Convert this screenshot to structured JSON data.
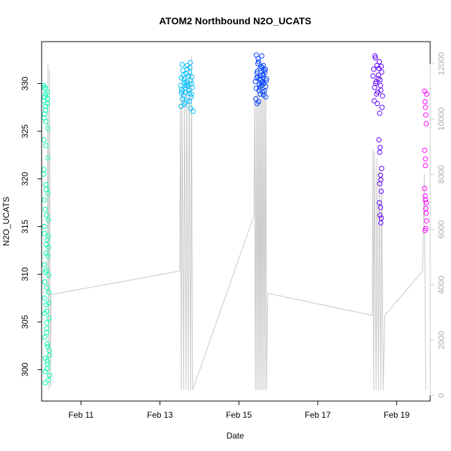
{
  "chart_data": {
    "type": "scatter",
    "title": "ATOM2 Northbound N2O_UCATS",
    "xlabel": "Date",
    "ylabel": "N2O_UCATS",
    "x_unit": "days of Feb 2017",
    "xlim": [
      10.0,
      19.85
    ],
    "ylim": [
      296.7,
      334.4
    ],
    "y2lim": [
      -200,
      12800
    ],
    "x_ticks": [
      {
        "value": 11,
        "label": "Feb 11"
      },
      {
        "value": 13,
        "label": "Feb 13"
      },
      {
        "value": 15,
        "label": "Feb 15"
      },
      {
        "value": 17,
        "label": "Feb 17"
      },
      {
        "value": 19,
        "label": "Feb 19"
      }
    ],
    "y_ticks": [
      300,
      305,
      310,
      315,
      320,
      325,
      330
    ],
    "y2_ticks": [
      0,
      2000,
      4000,
      6000,
      8000,
      10000,
      12000
    ],
    "y2_color": "#c8c8c8",
    "grid": false,
    "legend": "none",
    "series": [
      {
        "color": "#00ffb3",
        "x": [
          10.05,
          10.05,
          10.06,
          10.06,
          10.06,
          10.07,
          10.07,
          10.07,
          10.08,
          10.08,
          10.08,
          10.08,
          10.09,
          10.09,
          10.09,
          10.1,
          10.1,
          10.1,
          10.11,
          10.11,
          10.11,
          10.12,
          10.12,
          10.12,
          10.13,
          10.13,
          10.13,
          10.14,
          10.14,
          10.14,
          10.15,
          10.15,
          10.15,
          10.16,
          10.16,
          10.16,
          10.17,
          10.17,
          10.18,
          10.18,
          10.19,
          10.19,
          10.2,
          10.2,
          10.05,
          10.07,
          10.09,
          10.11,
          10.13,
          10.15,
          10.17,
          10.06,
          10.08,
          10.1,
          10.12,
          10.14,
          10.16,
          10.18,
          10.07,
          10.09,
          10.11,
          10.13,
          10.15,
          10.17
        ],
        "y": [
          329.8,
          328.2,
          326.4,
          324.1,
          321.0,
          317.8,
          314.3,
          311.0,
          309.2,
          307.5,
          305.9,
          303.4,
          301.2,
          299.8,
          298.6,
          329.5,
          328.9,
          327.6,
          326.0,
          323.5,
          319.4,
          316.2,
          313.1,
          310.4,
          308.6,
          306.1,
          304.3,
          302.7,
          300.9,
          300.1,
          329.1,
          328.4,
          327.9,
          325.3,
          322.2,
          318.5,
          315.7,
          312.8,
          309.9,
          307.0,
          305.4,
          302.0,
          301.5,
          299.4,
          320.5,
          315.0,
          310.2,
          306.8,
          303.9,
          300.6,
          298.9,
          329.6,
          328.6,
          327.2,
          318.9,
          313.6,
          311.9,
          308.1,
          326.8,
          316.8,
          312.2,
          304.9,
          302.4,
          314.0
        ]
      },
      {
        "color": "#00bfff",
        "x": [
          13.52,
          13.54,
          13.56,
          13.58,
          13.6,
          13.62,
          13.64,
          13.66,
          13.68,
          13.7,
          13.72,
          13.74,
          13.76,
          13.78,
          13.8,
          13.82,
          13.53,
          13.57,
          13.61,
          13.65,
          13.69,
          13.73,
          13.77,
          13.81,
          13.55,
          13.59,
          13.63,
          13.67,
          13.71,
          13.75,
          13.79,
          13.84,
          13.56,
          13.62,
          13.68,
          13.74,
          13.8,
          13.54,
          13.66,
          13.78
        ],
        "y": [
          329.8,
          330.6,
          329.2,
          331.4,
          328.7,
          330.1,
          329.5,
          331.0,
          328.2,
          329.9,
          330.8,
          329.0,
          331.7,
          330.3,
          328.9,
          329.6,
          327.6,
          328.4,
          330.4,
          329.1,
          331.9,
          329.3,
          332.2,
          330.7,
          329.4,
          330.9,
          328.0,
          330.2,
          329.7,
          331.2,
          328.6,
          327.1,
          332.0,
          327.8,
          331.5,
          328.1,
          330.0,
          329.0,
          329.8,
          327.4
        ]
      },
      {
        "color": "#0040ff",
        "x": [
          15.42,
          15.44,
          15.46,
          15.48,
          15.5,
          15.52,
          15.54,
          15.56,
          15.58,
          15.6,
          15.62,
          15.64,
          15.66,
          15.68,
          15.7,
          15.43,
          15.47,
          15.51,
          15.55,
          15.59,
          15.63,
          15.67,
          15.45,
          15.49,
          15.53,
          15.57,
          15.61,
          15.65,
          15.69,
          15.44,
          15.5,
          15.56,
          15.62,
          15.68,
          15.46,
          15.52,
          15.58,
          15.64,
          15.48,
          15.54,
          15.6
        ],
        "y": [
          330.2,
          329.5,
          331.1,
          330.7,
          332.3,
          329.9,
          331.6,
          330.4,
          332.9,
          329.1,
          331.9,
          330.0,
          331.2,
          329.7,
          330.5,
          328.4,
          331.3,
          329.3,
          330.8,
          331.7,
          328.8,
          331.5,
          330.6,
          332.6,
          329.6,
          330.1,
          331.0,
          329.2,
          330.3,
          333.0,
          328.1,
          331.8,
          330.9,
          328.6,
          327.9,
          330.5,
          329.8,
          331.4,
          332.1,
          328.9,
          330.2
        ]
      },
      {
        "color": "#6000ff",
        "x": [
          18.4,
          18.42,
          18.44,
          18.46,
          18.48,
          18.5,
          18.52,
          18.54,
          18.56,
          18.58,
          18.6,
          18.62,
          18.64,
          18.43,
          18.47,
          18.51,
          18.55,
          18.59,
          18.63,
          18.45,
          18.49,
          18.53,
          18.57,
          18.61,
          18.55,
          18.57,
          18.59,
          18.61,
          18.56,
          18.58,
          18.6,
          18.62,
          18.57,
          18.59,
          18.61,
          18.58,
          18.6
        ],
        "y": [
          330.8,
          331.5,
          329.6,
          332.7,
          330.2,
          331.9,
          329.1,
          330.9,
          332.3,
          330.4,
          329.3,
          331.2,
          328.7,
          328.2,
          330.0,
          327.9,
          331.6,
          329.8,
          327.5,
          332.9,
          328.9,
          330.5,
          326.9,
          331.8,
          324.1,
          322.8,
          320.4,
          318.7,
          317.5,
          316.2,
          315.4,
          321.1,
          319.5,
          317.0,
          315.9,
          323.3,
          319.9
        ]
      },
      {
        "color": "#ff00ff",
        "x": [
          19.71,
          19.72,
          19.73,
          19.74,
          19.75,
          19.76,
          19.71,
          19.73,
          19.75,
          19.72,
          19.74,
          19.76,
          19.71,
          19.73,
          19.75,
          19.72,
          19.74,
          19.73
        ],
        "y": [
          329.2,
          328.1,
          327.5,
          326.7,
          325.8,
          328.9,
          323.0,
          321.4,
          317.5,
          318.2,
          316.9,
          315.6,
          319.0,
          317.8,
          316.4,
          314.6,
          314.8,
          322.1
        ]
      }
    ],
    "secondary_series": {
      "color": "#c8c8c8",
      "x": [
        10.14,
        10.16,
        10.18,
        10.2,
        10.22,
        10.24,
        13.5,
        13.52,
        13.54,
        13.56,
        13.6,
        13.62,
        13.66,
        13.68,
        13.72,
        13.74,
        13.78,
        13.8,
        13.83,
        15.38,
        15.4,
        15.42,
        15.44,
        15.46,
        15.48,
        15.5,
        15.52,
        15.54,
        15.56,
        15.58,
        15.6,
        15.62,
        15.64,
        15.66,
        15.68,
        15.7,
        15.73,
        18.38,
        18.4,
        18.42,
        18.44,
        18.48,
        18.5,
        18.54,
        18.56,
        18.6,
        18.62,
        18.66,
        18.7,
        19.66,
        19.7,
        19.74
      ],
      "y": [
        3700,
        12000,
        200,
        11800,
        300,
        3650,
        4500,
        10800,
        200,
        11000,
        200,
        11300,
        200,
        11600,
        200,
        12000,
        200,
        12300,
        200,
        6500,
        10800,
        200,
        11000,
        200,
        11200,
        200,
        11400,
        200,
        11500,
        200,
        11700,
        200,
        11800,
        200,
        11600,
        200,
        3700,
        2900,
        8900,
        200,
        8800,
        200,
        8600,
        200,
        8300,
        200,
        8000,
        200,
        2900,
        4500,
        8000,
        200
      ]
    }
  }
}
